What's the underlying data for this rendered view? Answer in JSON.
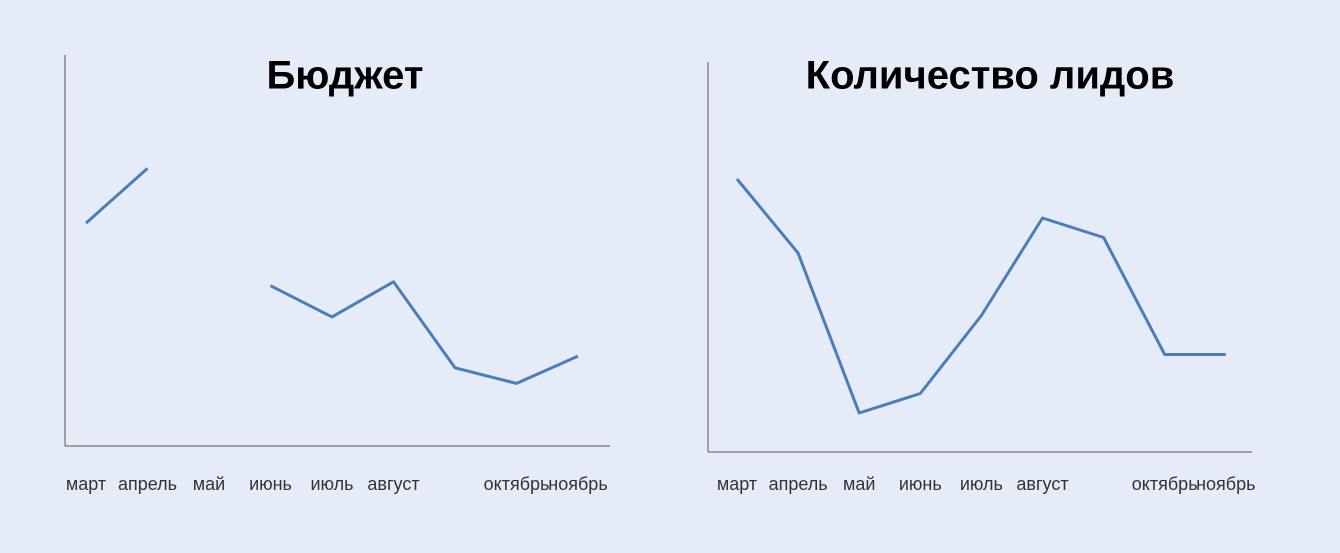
{
  "chart_data": [
    {
      "type": "line",
      "title": "Бюджет",
      "categories": [
        "март",
        "апрель",
        "май",
        "июнь",
        "июль",
        "август",
        null,
        "октябрь",
        "ноябрь"
      ],
      "series": [
        {
          "color": "#4a7ebb",
          "values": [
            57,
            71,
            null,
            41,
            33,
            42,
            20,
            16,
            23
          ]
        }
      ],
      "ylim": [
        0,
        100
      ]
    },
    {
      "type": "line",
      "title": "Количество лидов",
      "categories": [
        "март",
        "апрель",
        "май",
        "июнь",
        "июль",
        "август",
        null,
        "октябрь",
        "ноябрь"
      ],
      "series": [
        {
          "color": "#4a7ebb",
          "values": [
            70,
            51,
            10,
            15,
            35,
            60,
            55,
            25,
            25
          ]
        }
      ],
      "ylim": [
        0,
        100
      ]
    }
  ]
}
